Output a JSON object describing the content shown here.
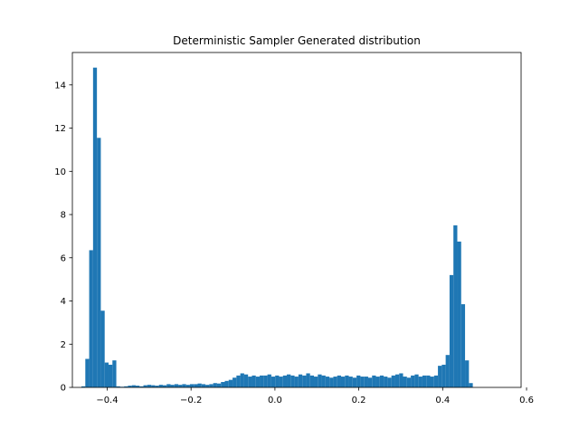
{
  "chart_data": {
    "type": "histogram",
    "title": "Deterministic Sampler Generated distribution",
    "xlabel": "",
    "ylabel": "",
    "xlim": [
      -0.483,
      0.587
    ],
    "ylim": [
      0,
      15.5
    ],
    "xticks": [
      -0.4,
      -0.2,
      0.0,
      0.2,
      0.4,
      0.6
    ],
    "xtick_labels": [
      "−0.4",
      "−0.2",
      "0.0",
      "0.2",
      "0.4",
      "0.6"
    ],
    "yticks": [
      0,
      2,
      4,
      6,
      8,
      10,
      12,
      14
    ],
    "ytick_labels": [
      "0",
      "2",
      "4",
      "6",
      "8",
      "10",
      "12",
      "14"
    ],
    "bar_color": "#1f77b4",
    "grid": false,
    "bin_start": -0.4614,
    "bin_width": 0.00924,
    "values": [
      0.05,
      1.32,
      6.35,
      14.8,
      11.55,
      3.55,
      1.15,
      1.05,
      1.25,
      0.05,
      0.03,
      0.05,
      0.08,
      0.1,
      0.08,
      0.05,
      0.1,
      0.12,
      0.1,
      0.08,
      0.12,
      0.1,
      0.15,
      0.12,
      0.15,
      0.12,
      0.15,
      0.12,
      0.15,
      0.15,
      0.18,
      0.15,
      0.12,
      0.15,
      0.2,
      0.18,
      0.25,
      0.3,
      0.35,
      0.45,
      0.55,
      0.65,
      0.6,
      0.5,
      0.55,
      0.5,
      0.55,
      0.55,
      0.6,
      0.5,
      0.55,
      0.5,
      0.55,
      0.6,
      0.55,
      0.5,
      0.6,
      0.55,
      0.65,
      0.55,
      0.5,
      0.6,
      0.55,
      0.5,
      0.45,
      0.5,
      0.55,
      0.5,
      0.55,
      0.5,
      0.45,
      0.55,
      0.5,
      0.5,
      0.45,
      0.55,
      0.5,
      0.55,
      0.5,
      0.45,
      0.55,
      0.6,
      0.65,
      0.5,
      0.45,
      0.55,
      0.6,
      0.5,
      0.55,
      0.55,
      0.5,
      0.55,
      1.0,
      1.05,
      1.5,
      5.2,
      7.5,
      6.75,
      3.85,
      1.25,
      0.2
    ],
    "note_values": "Estimated bar heights (density) read from the figure"
  }
}
